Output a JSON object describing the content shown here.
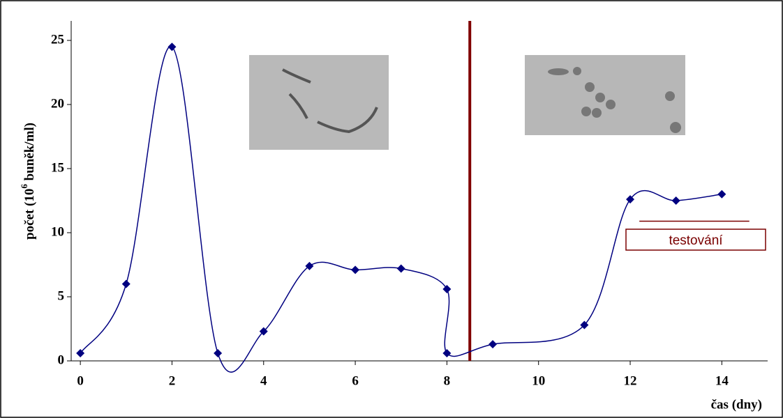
{
  "chart_data": {
    "type": "line",
    "ylabel": {
      "prefix": "počet (10",
      "sup": "6",
      "suffix": " buněk/ml)"
    },
    "xlabel": "čas (dny)",
    "x": [
      0,
      1,
      2,
      3,
      4,
      5,
      6,
      7,
      8,
      8,
      9,
      11,
      12,
      13,
      14
    ],
    "series": [
      {
        "color": "#000080",
        "values": [
          0.6,
          6,
          24.5,
          0.6,
          2.3,
          7.4,
          7.1,
          7.2,
          5.6,
          0.6,
          1.3,
          2.8,
          12.6,
          12.5,
          13.0
        ]
      }
    ],
    "xlim": [
      -0.2,
      15
    ],
    "xticks": [
      0,
      2,
      4,
      6,
      8,
      10,
      12,
      14
    ],
    "ylim": [
      0,
      25
    ],
    "yticks": [
      0,
      5,
      10,
      15,
      20,
      25
    ],
    "divider": {
      "x": 8.5,
      "color": "#800000"
    },
    "annotation": {
      "text": "testování",
      "x": [
        12.2,
        14.6
      ],
      "y": 10.9,
      "color": "#7a0000"
    }
  }
}
